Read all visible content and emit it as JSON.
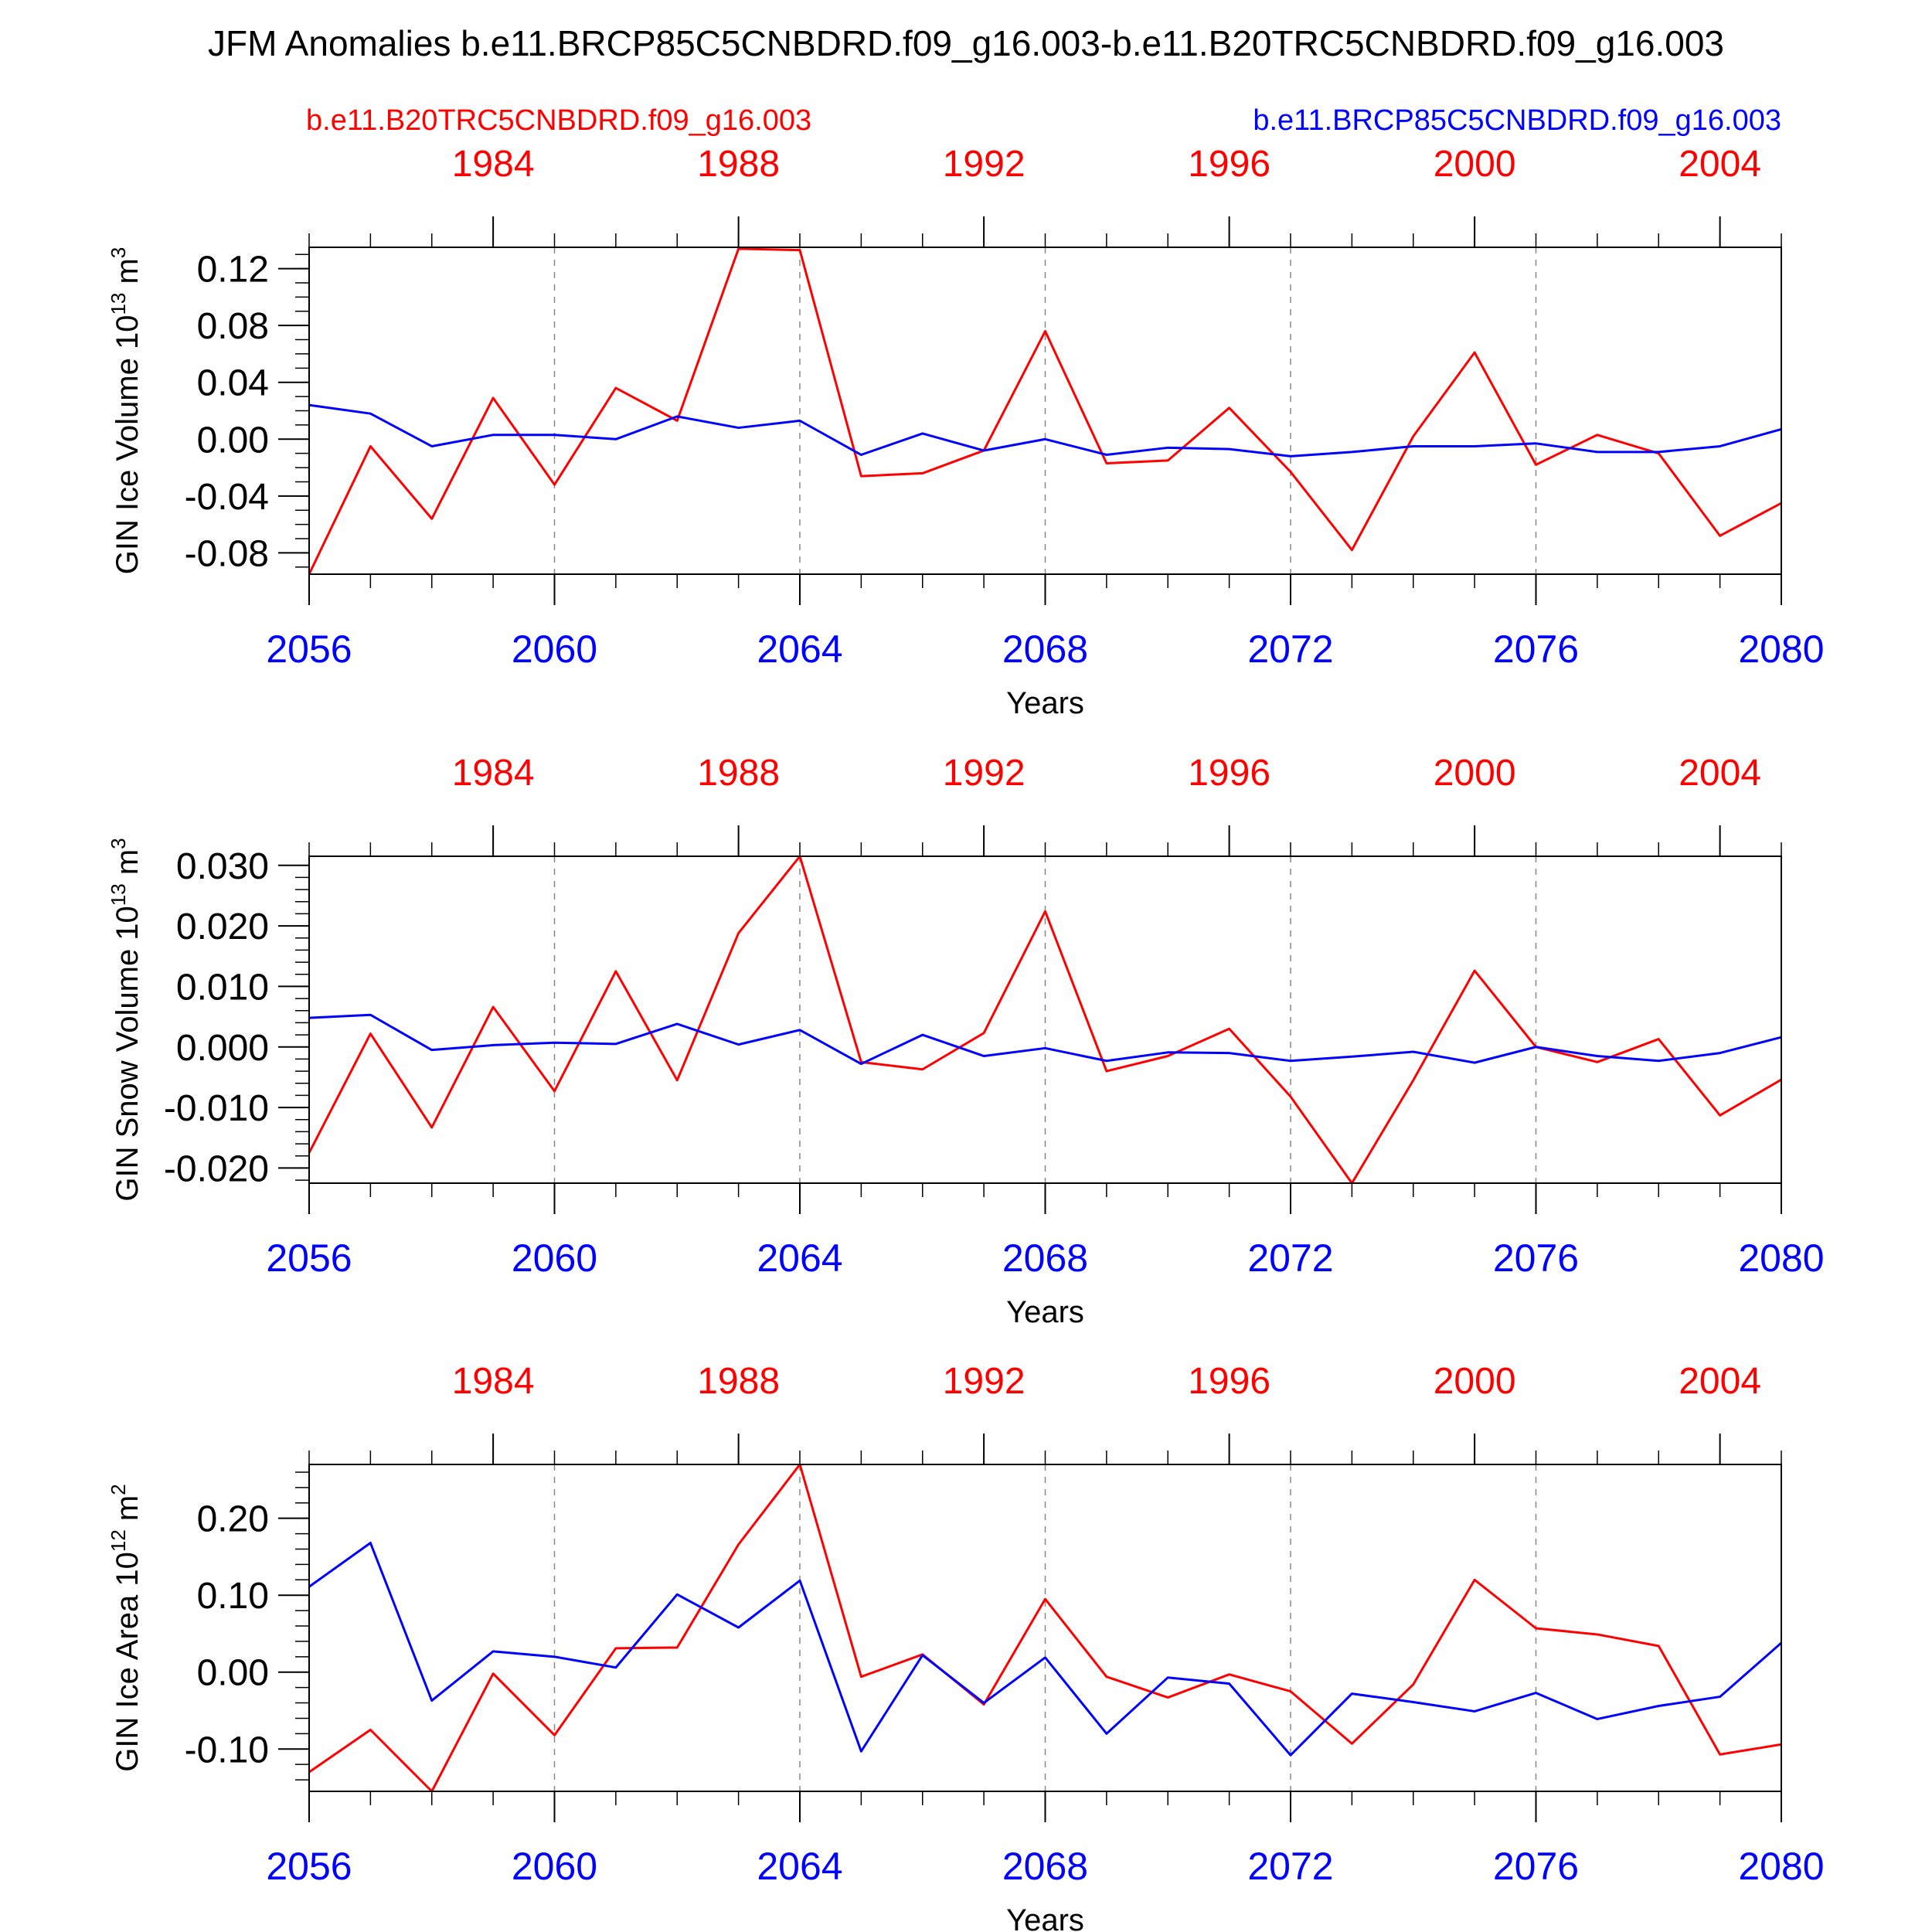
{
  "title": "JFM Anomalies b.e11.BRCP85C5CNBDRD.f09_g16.003-b.e11.B20TRC5CNBDRD.f09_g16.003",
  "legend": {
    "left_label": "b.e11.B20TRC5CNBDRD.f09_g16.003",
    "right_label": "b.e11.BRCP85C5CNBDRD.f09_g16.003"
  },
  "colors": {
    "historical": "#ff0000",
    "future": "#0000ff",
    "axis": "#000000",
    "grid": "#888888"
  },
  "chart_data": [
    {
      "type": "line",
      "ylabel": "GIN Ice Volume 10",
      "ylabel_exp": "13",
      "ylabel_unit": " m",
      "ylabel_unit_exp": "3",
      "xlabel": "Years",
      "bottom_x_ticks": [
        "2056",
        "2060",
        "2064",
        "2068",
        "2072",
        "2076",
        "2080"
      ],
      "top_x_ticks": [
        "1984",
        "1988",
        "1992",
        "1996",
        "2000",
        "2004"
      ],
      "xlim": [
        2056,
        2080
      ],
      "ylim": [
        -0.095,
        0.135
      ],
      "y_ticks": [
        0.12,
        0.08,
        0.04,
        0.0,
        -0.04,
        -0.08
      ],
      "y_tick_labels": [
        "0.12",
        "0.08",
        "0.04",
        "0.00",
        "-0.04",
        "-0.08"
      ],
      "y_minor_step": 0.01,
      "x": [
        2056,
        2057,
        2058,
        2059,
        2060,
        2061,
        2062,
        2063,
        2064,
        2065,
        2066,
        2067,
        2068,
        2069,
        2070,
        2071,
        2072,
        2073,
        2074,
        2075,
        2076,
        2077,
        2078,
        2079,
        2080
      ],
      "series": [
        {
          "name": "b.e11.B20TRC5CNBDRD.f09_g16.003",
          "color": "#ff0000",
          "values": [
            -0.095,
            -0.005,
            -0.056,
            0.029,
            -0.032,
            0.036,
            0.013,
            0.134,
            0.133,
            -0.026,
            -0.024,
            -0.008,
            0.076,
            -0.017,
            -0.015,
            0.022,
            -0.023,
            -0.078,
            0.002,
            0.061,
            -0.018,
            0.003,
            -0.01,
            -0.068,
            -0.045
          ]
        },
        {
          "name": "b.e11.BRCP85C5CNBDRD.f09_g16.003",
          "color": "#0000ff",
          "values": [
            0.024,
            0.018,
            -0.005,
            0.003,
            0.003,
            0.0,
            0.016,
            0.008,
            0.013,
            -0.011,
            0.004,
            -0.008,
            0.0,
            -0.011,
            -0.006,
            -0.007,
            -0.012,
            -0.009,
            -0.005,
            -0.005,
            -0.003,
            -0.009,
            -0.009,
            -0.005,
            0.007
          ]
        }
      ]
    },
    {
      "type": "line",
      "ylabel": "GIN Snow Volume 10",
      "ylabel_exp": "13",
      "ylabel_unit": " m",
      "ylabel_unit_exp": "3",
      "xlabel": "Years",
      "bottom_x_ticks": [
        "2056",
        "2060",
        "2064",
        "2068",
        "2072",
        "2076",
        "2080"
      ],
      "top_x_ticks": [
        "1984",
        "1988",
        "1992",
        "1996",
        "2000",
        "2004"
      ],
      "xlim": [
        2056,
        2080
      ],
      "ylim": [
        -0.0225,
        0.0315
      ],
      "y_ticks": [
        0.03,
        0.02,
        0.01,
        0.0,
        -0.01,
        -0.02
      ],
      "y_tick_labels": [
        "0.030",
        "0.020",
        "0.010",
        "0.000",
        "-0.010",
        "-0.020"
      ],
      "y_minor_step": 0.002,
      "x": [
        2056,
        2057,
        2058,
        2059,
        2060,
        2061,
        2062,
        2063,
        2064,
        2065,
        2066,
        2067,
        2068,
        2069,
        2070,
        2071,
        2072,
        2073,
        2074,
        2075,
        2076,
        2077,
        2078,
        2079,
        2080
      ],
      "series": [
        {
          "name": "b.e11.B20TRC5CNBDRD.f09_g16.003",
          "color": "#ff0000",
          "values": [
            -0.0175,
            0.0022,
            -0.0133,
            0.0066,
            -0.0073,
            0.0125,
            -0.0055,
            0.0188,
            0.0315,
            -0.0025,
            -0.0037,
            0.0023,
            0.0224,
            -0.004,
            -0.0015,
            0.003,
            -0.0082,
            -0.0225,
            -0.0055,
            0.0126,
            0.0,
            -0.0025,
            0.0013,
            -0.0113,
            -0.0054
          ]
        },
        {
          "name": "b.e11.BRCP85C5CNBDRD.f09_g16.003",
          "color": "#0000ff",
          "values": [
            0.0048,
            0.0053,
            -0.0005,
            0.0003,
            0.0007,
            0.0005,
            0.0038,
            0.0004,
            0.0028,
            -0.0028,
            0.002,
            -0.0015,
            -0.0002,
            -0.0023,
            -0.0009,
            -0.001,
            -0.0023,
            -0.0016,
            -0.0008,
            -0.0026,
            0.0,
            -0.0015,
            -0.0023,
            -0.001,
            0.0016
          ]
        }
      ]
    },
    {
      "type": "line",
      "ylabel": "GIN Ice Area 10",
      "ylabel_exp": "12",
      "ylabel_unit": " m",
      "ylabel_unit_exp": "2",
      "xlabel": "Years",
      "bottom_x_ticks": [
        "2056",
        "2060",
        "2064",
        "2068",
        "2072",
        "2076",
        "2080"
      ],
      "top_x_ticks": [
        "1984",
        "1988",
        "1992",
        "1996",
        "2000",
        "2004"
      ],
      "xlim": [
        2056,
        2080
      ],
      "ylim": [
        -0.155,
        0.27
      ],
      "y_ticks": [
        0.2,
        0.1,
        0.0,
        -0.1
      ],
      "y_tick_labels": [
        "0.20",
        "0.10",
        "0.00",
        "-0.10"
      ],
      "y_minor_step": 0.02,
      "x": [
        2056,
        2057,
        2058,
        2059,
        2060,
        2061,
        2062,
        2063,
        2064,
        2065,
        2066,
        2067,
        2068,
        2069,
        2070,
        2071,
        2072,
        2073,
        2074,
        2075,
        2076,
        2077,
        2078,
        2079,
        2080
      ],
      "series": [
        {
          "name": "b.e11.B20TRC5CNBDRD.f09_g16.003",
          "color": "#ff0000",
          "values": [
            -0.13,
            -0.075,
            -0.155,
            -0.002,
            -0.082,
            0.031,
            0.032,
            0.166,
            0.27,
            -0.006,
            0.023,
            -0.042,
            0.095,
            -0.006,
            -0.033,
            -0.003,
            -0.025,
            -0.093,
            -0.016,
            0.12,
            0.057,
            0.049,
            0.034,
            -0.107,
            -0.094
          ]
        },
        {
          "name": "b.e11.BRCP85C5CNBDRD.f09_g16.003",
          "color": "#0000ff",
          "values": [
            0.111,
            0.168,
            -0.037,
            0.027,
            0.02,
            0.006,
            0.101,
            0.058,
            0.119,
            -0.103,
            0.022,
            -0.04,
            0.019,
            -0.08,
            -0.007,
            -0.015,
            -0.108,
            -0.028,
            -0.039,
            -0.051,
            -0.027,
            -0.061,
            -0.044,
            -0.032,
            0.038
          ]
        }
      ]
    }
  ]
}
